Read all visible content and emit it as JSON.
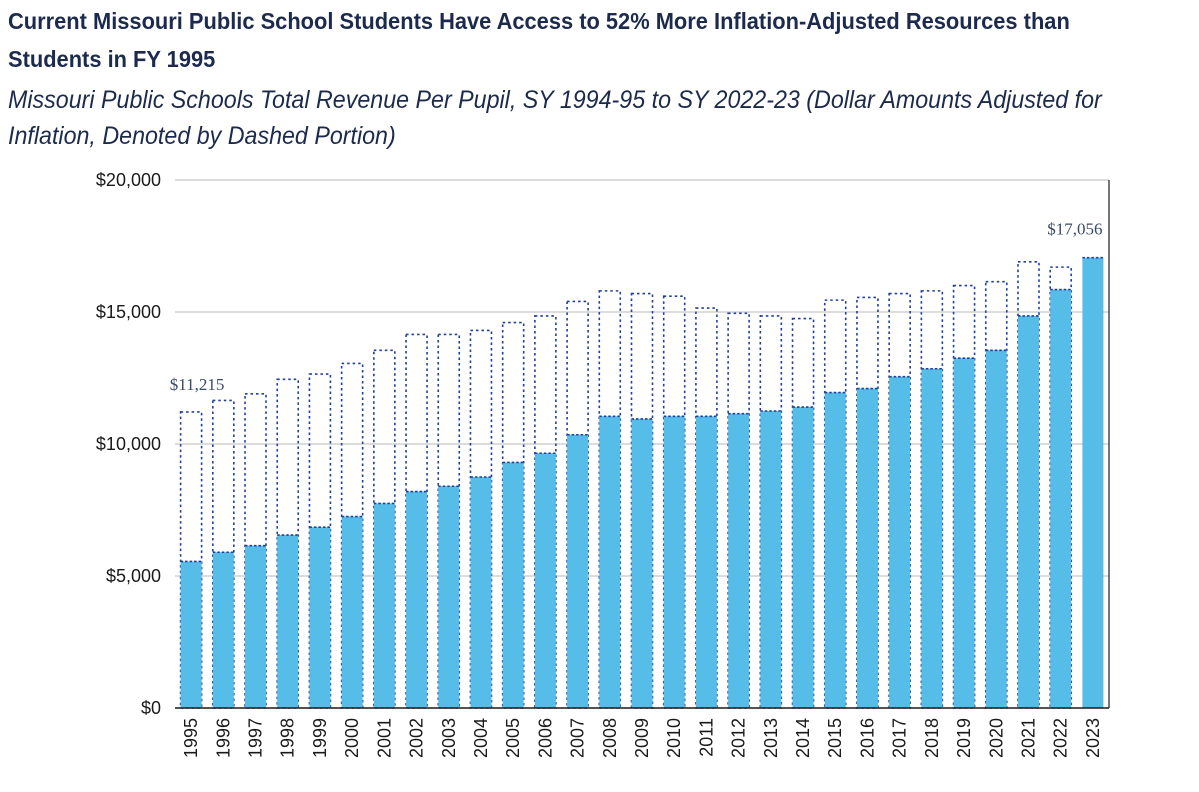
{
  "title": "Current Missouri Public School Students Have Access to 52% More Inflation-Adjusted Resources than Students in FY 1995",
  "subtitle": "Missouri Public Schools Total Revenue Per Pupil, SY 1994-95 to SY 2022-23 (Dollar Amounts Adjusted for Inflation, Denoted by Dashed Portion)",
  "colors": {
    "bar": "#55bde8",
    "dashed_outline": "#1f3f9a",
    "grid": "#c8c8c8",
    "axis": "#1a1a1a"
  },
  "chart_data": {
    "type": "bar",
    "categories": [
      "1995",
      "1996",
      "1997",
      "1998",
      "1999",
      "2000",
      "2001",
      "2002",
      "2003",
      "2004",
      "2005",
      "2006",
      "2007",
      "2008",
      "2009",
      "2010",
      "2011",
      "2012",
      "2013",
      "2014",
      "2015",
      "2016",
      "2017",
      "2018",
      "2019",
      "2020",
      "2021",
      "2022",
      "2023"
    ],
    "series": [
      {
        "values": [
          5550,
          5900,
          6150,
          6550,
          6850,
          7250,
          7750,
          8200,
          8400,
          8750,
          9300,
          9650,
          10350,
          11050,
          10950,
          11050,
          11050,
          11150,
          11250,
          11400,
          11950,
          12100,
          12550,
          12850,
          13250,
          13550,
          14850,
          15850,
          17056
        ]
      },
      {
        "values": [
          11215,
          11650,
          11900,
          12450,
          12650,
          13050,
          13550,
          14150,
          14150,
          14300,
          14600,
          14850,
          15400,
          15800,
          15700,
          15600,
          15150,
          14950,
          14850,
          14750,
          15450,
          15550,
          15700,
          15800,
          16000,
          16150,
          16900,
          16700,
          17056
        ]
      }
    ],
    "data_labels": [
      "$11,215",
      "$17,056"
    ],
    "ytick_labels": [
      "$0",
      "$5,000",
      "$10,000",
      "$15,000",
      "$20,000"
    ],
    "ylim": [
      0,
      20000
    ],
    "grid": true
  }
}
